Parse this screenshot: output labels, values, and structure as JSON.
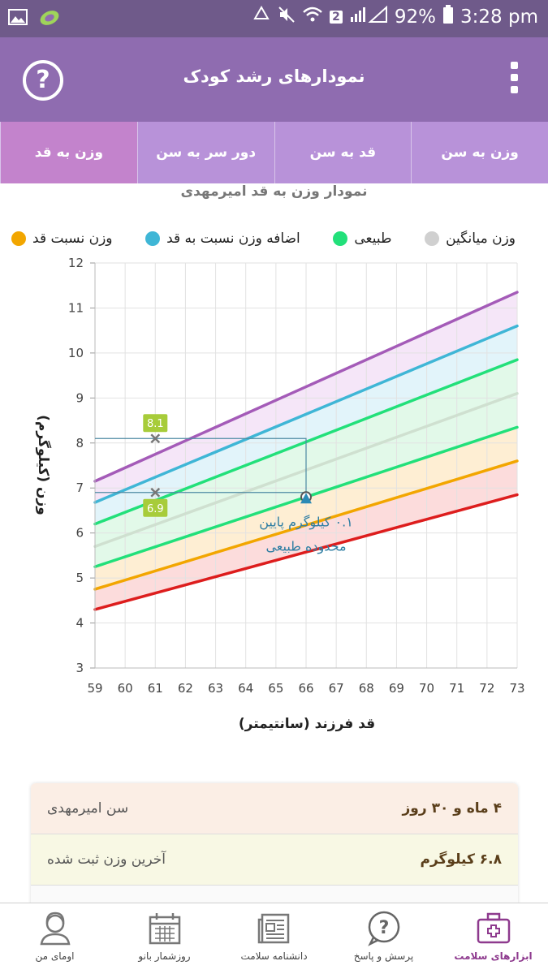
{
  "status_bar": {
    "battery": "92%",
    "time": "3:28 pm",
    "sim_badge": "2",
    "icons": [
      "gallery-icon",
      "app-logo-icon",
      "recycle-icon",
      "mute-icon",
      "wifi-icon",
      "signal-icon",
      "battery-icon"
    ]
  },
  "app_bar": {
    "title": "نمودارهای رشد کودک",
    "help_label": "?"
  },
  "tabs": [
    {
      "label": "وزن به سن",
      "active": false
    },
    {
      "label": "قد به سن",
      "active": false
    },
    {
      "label": "دور سر به سن",
      "active": false
    },
    {
      "label": "وزن به قد",
      "active": true
    }
  ],
  "chart_data": {
    "type": "area",
    "title": "نمودار وزن به قد امیرمهدی",
    "xlabel": "قد فرزند (سانتیمتر)",
    "ylabel": "وزن (کیلوگرم)",
    "xlim": [
      59,
      73
    ],
    "ylim": [
      3,
      12
    ],
    "x_ticks": [
      59,
      60,
      61,
      62,
      63,
      64,
      65,
      66,
      67,
      68,
      69,
      70,
      71,
      72,
      73
    ],
    "y_ticks": [
      3,
      4,
      5,
      6,
      7,
      8,
      9,
      10,
      11,
      12
    ],
    "grid": true,
    "legend": [
      {
        "name": "وزن نسبت قد",
        "color": "#f2a600"
      },
      {
        "name": "اضافه وزن نسبت به قد",
        "color": "#3fb6d6"
      },
      {
        "name": "طبیعی",
        "color": "#22e07a"
      },
      {
        "name": "وزن میانگین",
        "color": "#d0d0d0"
      }
    ],
    "curves": [
      {
        "color": "#dd1d1d",
        "start": [
          59,
          4.3
        ],
        "end": [
          73,
          6.85
        ]
      },
      {
        "color": "#f2a600",
        "start": [
          59,
          4.75
        ],
        "end": [
          73,
          7.6
        ]
      },
      {
        "color": "#22e07a",
        "start": [
          59,
          5.25
        ],
        "end": [
          73,
          8.35
        ]
      },
      {
        "color": "#cfe0d0",
        "start": [
          59,
          5.7
        ],
        "end": [
          73,
          9.1
        ]
      },
      {
        "color": "#22e07a",
        "start": [
          59,
          6.2
        ],
        "end": [
          73,
          9.85
        ]
      },
      {
        "color": "#3fb6d6",
        "start": [
          59,
          6.68
        ],
        "end": [
          73,
          10.6
        ]
      },
      {
        "color": "#a45bb8",
        "start": [
          59,
          7.15
        ],
        "end": [
          73,
          11.35
        ]
      }
    ],
    "band_fills": [
      "#fbd0d0",
      "#fde8c4",
      "#d8f7e2",
      "#d8f7e2",
      "#d8f0f8",
      "#f1def5"
    ],
    "markers": [
      {
        "x": 61,
        "y": 8.1,
        "label": "8.1",
        "label_pos": "above"
      },
      {
        "x": 61,
        "y": 6.9,
        "label": "6.9",
        "label_pos": "below"
      }
    ],
    "current_point": {
      "x": 66,
      "y": 6.8
    },
    "annotation": [
      "۰.۱ کیلوگرم پایین",
      "محدوده طبیعی"
    ]
  },
  "info": {
    "age_label": "سن امیرمهدی",
    "age_value": "۴ ماه و ۳۰ روز",
    "weight_label": "آخرین وزن ثبت شده",
    "weight_value": "۶.۸ کیلوگرم"
  },
  "bottom_nav": [
    {
      "label": "ابزارهای سلامت",
      "icon": "medical-kit-icon",
      "active": true
    },
    {
      "label": "پرسش و پاسخ",
      "icon": "question-bubble-icon",
      "active": false
    },
    {
      "label": "دانشنامه سلامت",
      "icon": "newspaper-icon",
      "active": false
    },
    {
      "label": "روزشمار بانو",
      "icon": "calendar-icon",
      "active": false
    },
    {
      "label": "اومای من",
      "icon": "profile-icon",
      "active": false
    }
  ]
}
